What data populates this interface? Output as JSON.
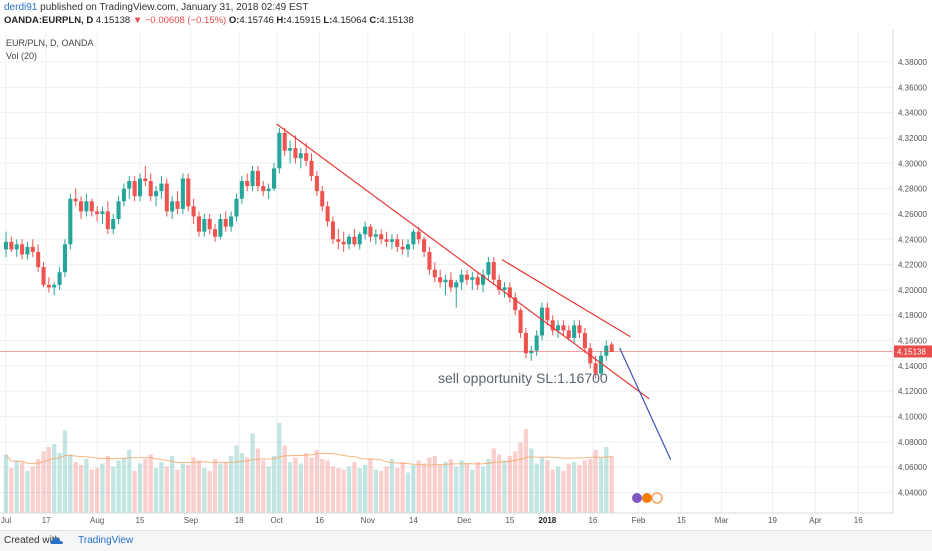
{
  "header": {
    "username": "derdi91",
    "published": " published on TradingView.com, January 31, 2018 02:49 EST",
    "symbol": "OANDA:EURPLN, D",
    "last": "4.15138",
    "change": "−0.00608 (−0.15%)",
    "o_label": "O:",
    "o": "4.15746",
    "h_label": "H:",
    "h": "4.15915",
    "l_label": "L:",
    "l": "4.15064",
    "c_label": "C:",
    "c": "4.15138"
  },
  "footer": {
    "created_with": "Created with",
    "brand": "TradingView"
  },
  "colors": {
    "up": "#26a69a",
    "down": "#ef5350",
    "trend": "#e53935",
    "projection": "#3f51b5",
    "price_line": "#e84b4b",
    "ma": "#f4a460"
  },
  "chart_data": {
    "type": "candlestick",
    "pane_labels": [
      "EUR/PLN, D, OANDA",
      "Vol (20)"
    ],
    "y_ticks": [
      "4.38000",
      "4.36000",
      "4.34000",
      "4.32000",
      "4.30000",
      "4.28000",
      "4.26000",
      "4.24000",
      "4.22000",
      "4.20000",
      "4.18000",
      "4.16000",
      "4.14000",
      "4.12000",
      "4.10000",
      "4.08000",
      "4.06000",
      "4.04000"
    ],
    "ylim": [
      4.025,
      4.385
    ],
    "x_ticks": [
      "Jul",
      "17",
      "Aug",
      "15",
      "Sep",
      "18",
      "Oct",
      "16",
      "Nov",
      "14",
      "Dec",
      "15",
      "2018",
      "16",
      "Feb",
      "15",
      "Mar",
      "19",
      "Apr",
      "16"
    ],
    "last_price_label": "4.15138",
    "last_price": 4.15138,
    "annotation": "sell opportunity SL:1.16700",
    "candles": [
      [
        4.232,
        4.246,
        4.226,
        4.238
      ],
      [
        4.238,
        4.242,
        4.23,
        4.232
      ],
      [
        4.232,
        4.24,
        4.226,
        4.236
      ],
      [
        4.236,
        4.24,
        4.224,
        4.228
      ],
      [
        4.228,
        4.238,
        4.224,
        4.234
      ],
      [
        4.234,
        4.24,
        4.226,
        4.23
      ],
      [
        4.23,
        4.236,
        4.214,
        4.218
      ],
      [
        4.218,
        4.222,
        4.202,
        4.204
      ],
      [
        4.204,
        4.21,
        4.198,
        4.202
      ],
      [
        4.202,
        4.206,
        4.196,
        4.204
      ],
      [
        4.204,
        4.218,
        4.2,
        4.214
      ],
      [
        4.214,
        4.24,
        4.21,
        4.236
      ],
      [
        4.236,
        4.276,
        4.232,
        4.272
      ],
      [
        4.272,
        4.28,
        4.266,
        4.27
      ],
      [
        4.27,
        4.274,
        4.256,
        4.262
      ],
      [
        4.262,
        4.276,
        4.258,
        4.27
      ],
      [
        4.27,
        4.272,
        4.258,
        4.262
      ],
      [
        4.262,
        4.266,
        4.254,
        4.26
      ],
      [
        4.26,
        4.266,
        4.252,
        4.262
      ],
      [
        4.262,
        4.27,
        4.244,
        4.248
      ],
      [
        4.248,
        4.26,
        4.244,
        4.256
      ],
      [
        4.256,
        4.274,
        4.252,
        4.27
      ],
      [
        4.27,
        4.284,
        4.266,
        4.28
      ],
      [
        4.28,
        4.29,
        4.272,
        4.286
      ],
      [
        4.286,
        4.29,
        4.27,
        4.274
      ],
      [
        4.274,
        4.292,
        4.27,
        4.288
      ],
      [
        4.288,
        4.298,
        4.282,
        4.286
      ],
      [
        4.286,
        4.292,
        4.27,
        4.274
      ],
      [
        4.274,
        4.282,
        4.266,
        4.278
      ],
      [
        4.278,
        4.29,
        4.272,
        4.284
      ],
      [
        4.284,
        4.288,
        4.258,
        4.262
      ],
      [
        4.262,
        4.274,
        4.256,
        4.27
      ],
      [
        4.27,
        4.278,
        4.26,
        4.264
      ],
      [
        4.264,
        4.292,
        4.26,
        4.288
      ],
      [
        4.288,
        4.292,
        4.262,
        4.266
      ],
      [
        4.266,
        4.272,
        4.252,
        4.258
      ],
      [
        4.258,
        4.262,
        4.242,
        4.246
      ],
      [
        4.246,
        4.26,
        4.242,
        4.256
      ],
      [
        4.256,
        4.26,
        4.244,
        4.248
      ],
      [
        4.248,
        4.252,
        4.238,
        4.242
      ],
      [
        4.242,
        4.26,
        4.24,
        4.256
      ],
      [
        4.256,
        4.262,
        4.246,
        4.25
      ],
      [
        4.25,
        4.262,
        4.246,
        4.258
      ],
      [
        4.258,
        4.276,
        4.254,
        4.272
      ],
      [
        4.272,
        4.29,
        4.268,
        4.286
      ],
      [
        4.286,
        4.292,
        4.278,
        4.282
      ],
      [
        4.282,
        4.298,
        4.278,
        4.294
      ],
      [
        4.294,
        4.298,
        4.278,
        4.282
      ],
      [
        4.282,
        4.286,
        4.274,
        4.278
      ],
      [
        4.278,
        4.284,
        4.272,
        4.28
      ],
      [
        4.28,
        4.3,
        4.278,
        4.296
      ],
      [
        4.296,
        4.328,
        4.292,
        4.324
      ],
      [
        4.324,
        4.328,
        4.306,
        4.31
      ],
      [
        4.31,
        4.318,
        4.3,
        4.312
      ],
      [
        4.312,
        4.322,
        4.3,
        4.304
      ],
      [
        4.304,
        4.312,
        4.296,
        4.308
      ],
      [
        4.308,
        4.316,
        4.298,
        4.302
      ],
      [
        4.302,
        4.308,
        4.286,
        4.29
      ],
      [
        4.29,
        4.294,
        4.274,
        4.278
      ],
      [
        4.278,
        4.282,
        4.262,
        4.266
      ],
      [
        4.266,
        4.27,
        4.25,
        4.254
      ],
      [
        4.254,
        4.258,
        4.236,
        4.24
      ],
      [
        4.24,
        4.248,
        4.232,
        4.238
      ],
      [
        4.238,
        4.246,
        4.23,
        4.236
      ],
      [
        4.236,
        4.244,
        4.232,
        4.242
      ],
      [
        4.242,
        4.248,
        4.234,
        4.236
      ],
      [
        4.236,
        4.246,
        4.232,
        4.244
      ],
      [
        4.244,
        4.254,
        4.24,
        4.25
      ],
      [
        4.25,
        4.252,
        4.238,
        4.242
      ],
      [
        4.242,
        4.248,
        4.236,
        4.244
      ],
      [
        4.244,
        4.248,
        4.236,
        4.24
      ],
      [
        4.24,
        4.246,
        4.234,
        4.238
      ],
      [
        4.238,
        4.244,
        4.232,
        4.24
      ],
      [
        4.24,
        4.244,
        4.23,
        4.234
      ],
      [
        4.234,
        4.24,
        4.228,
        4.232
      ],
      [
        4.232,
        4.24,
        4.226,
        4.236
      ],
      [
        4.236,
        4.248,
        4.232,
        4.246
      ],
      [
        4.246,
        4.25,
        4.236,
        4.24
      ],
      [
        4.24,
        4.242,
        4.226,
        4.23
      ],
      [
        4.23,
        4.234,
        4.212,
        4.216
      ],
      [
        4.216,
        4.222,
        4.206,
        4.21
      ],
      [
        4.21,
        4.216,
        4.202,
        4.206
      ],
      [
        4.206,
        4.212,
        4.196,
        4.208
      ],
      [
        4.208,
        4.214,
        4.198,
        4.202
      ],
      [
        4.202,
        4.208,
        4.186,
        4.206
      ],
      [
        4.206,
        4.216,
        4.2,
        4.212
      ],
      [
        4.212,
        4.216,
        4.204,
        4.208
      ],
      [
        4.208,
        4.214,
        4.2,
        4.21
      ],
      [
        4.21,
        4.214,
        4.2,
        4.204
      ],
      [
        4.204,
        4.216,
        4.198,
        4.212
      ],
      [
        4.212,
        4.226,
        4.208,
        4.222
      ],
      [
        4.222,
        4.226,
        4.204,
        4.208
      ],
      [
        4.208,
        4.212,
        4.196,
        4.2
      ],
      [
        4.2,
        4.206,
        4.194,
        4.202
      ],
      [
        4.202,
        4.206,
        4.19,
        4.194
      ],
      [
        4.194,
        4.198,
        4.18,
        4.184
      ],
      [
        4.184,
        4.186,
        4.162,
        4.166
      ],
      [
        4.166,
        4.17,
        4.146,
        4.15
      ],
      [
        4.15,
        4.156,
        4.144,
        4.152
      ],
      [
        4.152,
        4.168,
        4.148,
        4.164
      ],
      [
        4.164,
        4.19,
        4.16,
        4.186
      ],
      [
        4.186,
        4.19,
        4.172,
        4.176
      ],
      [
        4.176,
        4.18,
        4.164,
        4.168
      ],
      [
        4.168,
        4.176,
        4.162,
        4.172
      ],
      [
        4.172,
        4.176,
        4.164,
        4.168
      ],
      [
        4.168,
        4.172,
        4.16,
        4.162
      ],
      [
        4.162,
        4.176,
        4.158,
        4.172
      ],
      [
        4.172,
        4.176,
        4.162,
        4.166
      ],
      [
        4.166,
        4.17,
        4.15,
        4.154
      ],
      [
        4.154,
        4.158,
        4.138,
        4.142
      ],
      [
        4.142,
        4.148,
        4.13,
        4.134
      ],
      [
        4.134,
        4.152,
        4.13,
        4.148
      ],
      [
        4.148,
        4.16,
        4.144,
        4.156
      ],
      [
        4.157,
        4.159,
        4.151,
        4.151
      ]
    ],
    "volume": [
      0.39,
      0.3,
      0.35,
      0.34,
      0.28,
      0.31,
      0.36,
      0.41,
      0.44,
      0.46,
      0.4,
      0.55,
      0.39,
      0.34,
      0.32,
      0.36,
      0.29,
      0.3,
      0.33,
      0.38,
      0.31,
      0.35,
      0.37,
      0.42,
      0.28,
      0.33,
      0.36,
      0.39,
      0.3,
      0.34,
      0.31,
      0.38,
      0.29,
      0.33,
      0.32,
      0.37,
      0.35,
      0.3,
      0.28,
      0.36,
      0.33,
      0.34,
      0.38,
      0.45,
      0.4,
      0.37,
      0.53,
      0.43,
      0.35,
      0.31,
      0.38,
      0.6,
      0.45,
      0.34,
      0.37,
      0.33,
      0.4,
      0.37,
      0.42,
      0.36,
      0.35,
      0.31,
      0.3,
      0.29,
      0.31,
      0.34,
      0.3,
      0.32,
      0.36,
      0.29,
      0.28,
      0.31,
      0.36,
      0.3,
      0.34,
      0.27,
      0.32,
      0.35,
      0.33,
      0.37,
      0.38,
      0.32,
      0.34,
      0.36,
      0.31,
      0.35,
      0.33,
      0.29,
      0.34,
      0.31,
      0.36,
      0.43,
      0.39,
      0.35,
      0.38,
      0.41,
      0.47,
      0.56,
      0.43,
      0.33,
      0.37,
      0.35,
      0.29,
      0.31,
      0.28,
      0.33,
      0.34,
      0.32,
      0.35,
      0.36,
      0.42,
      0.37,
      0.44,
      0.38
    ],
    "trendlines": [
      {
        "name": "upper-trendline",
        "from": [
          50.5,
          4.331
        ],
        "to": [
          120,
          4.114
        ]
      },
      {
        "name": "lower-trendline",
        "from": [
          92.5,
          4.224
        ],
        "to": [
          116.5,
          4.163
        ]
      },
      {
        "name": "projection-line",
        "from": [
          114.5,
          4.154
        ],
        "to": [
          124,
          4.066
        ]
      }
    ]
  }
}
